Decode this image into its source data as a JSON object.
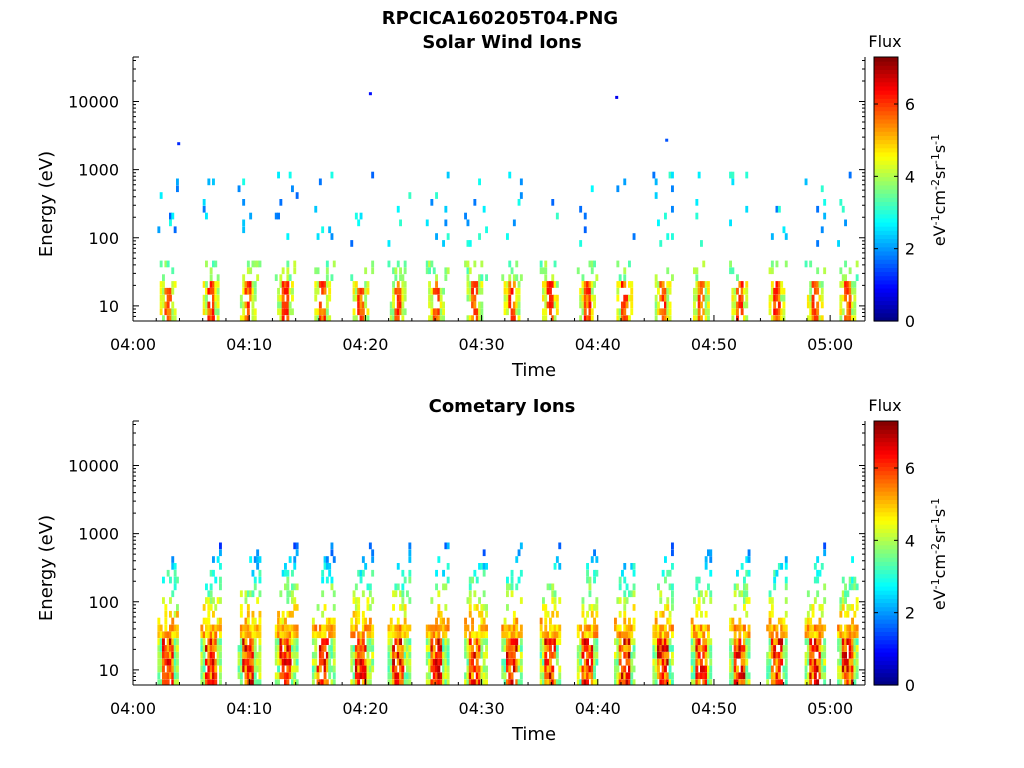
{
  "page": {
    "title": "RPCICA160205T04.PNG"
  },
  "panels": [
    {
      "title": "Solar Wind Ions",
      "ylabel": "Energy (eV)",
      "xlabel": "Time",
      "colorbar_title": "Flux",
      "colorbar_label_parts": [
        "eV",
        "-1",
        "cm",
        "-2",
        "sr",
        "-1",
        "s",
        "-1"
      ]
    },
    {
      "title": "Cometary Ions",
      "ylabel": "Energy (eV)",
      "xlabel": "Time",
      "colorbar_title": "Flux",
      "colorbar_label_parts": [
        "eV",
        "-1",
        "cm",
        "-2",
        "sr",
        "-1",
        "s",
        "-1"
      ]
    }
  ],
  "chart_data": [
    {
      "type": "heatmap",
      "title": "Solar Wind Ions",
      "xlabel": "Time",
      "ylabel": "Energy (eV)",
      "yscale": "log",
      "ylim": [
        6,
        45000
      ],
      "xlim_minutes": [
        0,
        63
      ],
      "x_ticks": [
        "04:00",
        "04:10",
        "04:20",
        "04:30",
        "04:40",
        "04:50",
        "05:00"
      ],
      "y_ticks": [
        "10",
        "100",
        "1000",
        "10000"
      ],
      "colorbar": {
        "title": "Flux",
        "range": [
          0,
          7.3
        ],
        "ticks": [
          "0",
          "2",
          "4",
          "6"
        ]
      },
      "bursts_minutes": [
        2.9,
        6.6,
        9.8,
        13.0,
        16.2,
        19.5,
        22.7,
        26.0,
        29.3,
        32.5,
        35.8,
        39.0,
        42.2,
        45.5,
        48.8,
        52.1,
        55.3,
        58.6,
        61.4
      ],
      "sparse_high_energy": [
        {
          "t": 3.8,
          "e": 2400,
          "v": 1.2
        },
        {
          "t": 20.3,
          "e": 13000,
          "v": 1.0
        },
        {
          "t": 41.5,
          "e": 11500,
          "v": 0.8
        },
        {
          "t": 45.8,
          "e": 2700,
          "v": 1.5
        }
      ]
    },
    {
      "type": "heatmap",
      "title": "Cometary Ions",
      "xlabel": "Time",
      "ylabel": "Energy (eV)",
      "yscale": "log",
      "ylim": [
        6,
        45000
      ],
      "xlim_minutes": [
        0,
        63
      ],
      "x_ticks": [
        "04:00",
        "04:10",
        "04:20",
        "04:30",
        "04:40",
        "04:50",
        "05:00"
      ],
      "y_ticks": [
        "10",
        "100",
        "1000",
        "10000"
      ],
      "colorbar": {
        "title": "Flux",
        "range": [
          0,
          7.3
        ],
        "ticks": [
          "0",
          "2",
          "4",
          "6"
        ]
      },
      "bursts_minutes": [
        2.9,
        6.6,
        9.8,
        13.0,
        16.2,
        19.5,
        22.7,
        26.0,
        29.3,
        32.5,
        35.8,
        39.0,
        42.2,
        45.5,
        48.8,
        52.1,
        55.3,
        58.6,
        61.4
      ],
      "max_energy_reached_eV": 900
    }
  ]
}
